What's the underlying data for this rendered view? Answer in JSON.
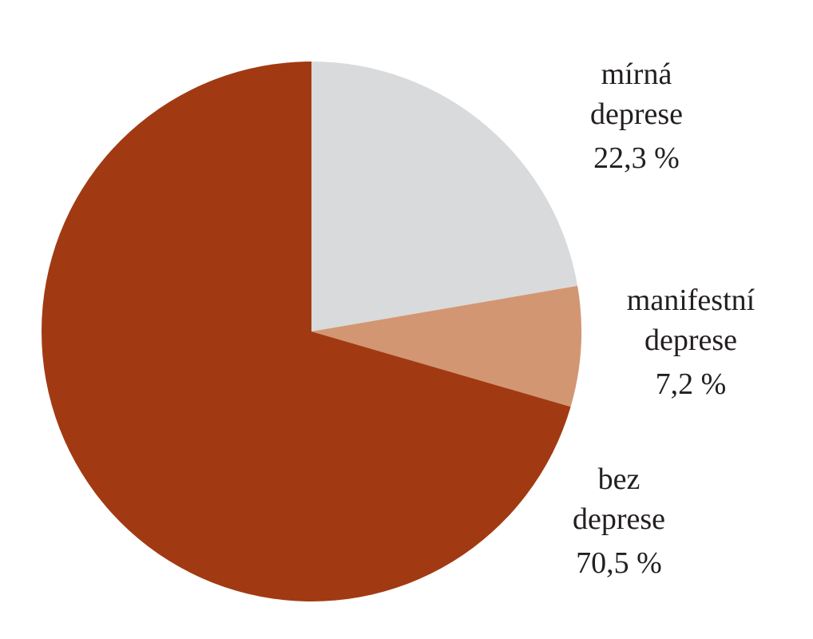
{
  "chart_data": {
    "type": "pie",
    "categories": [
      "mírná deprese",
      "manifestní deprese",
      "bez deprese"
    ],
    "values": [
      22.3,
      7.2,
      70.5
    ],
    "value_labels": [
      "22,3 %",
      "7,2 %",
      "70,5 %"
    ],
    "colors": [
      "#d9dadb",
      "#d39672",
      "#a13a12"
    ]
  }
}
